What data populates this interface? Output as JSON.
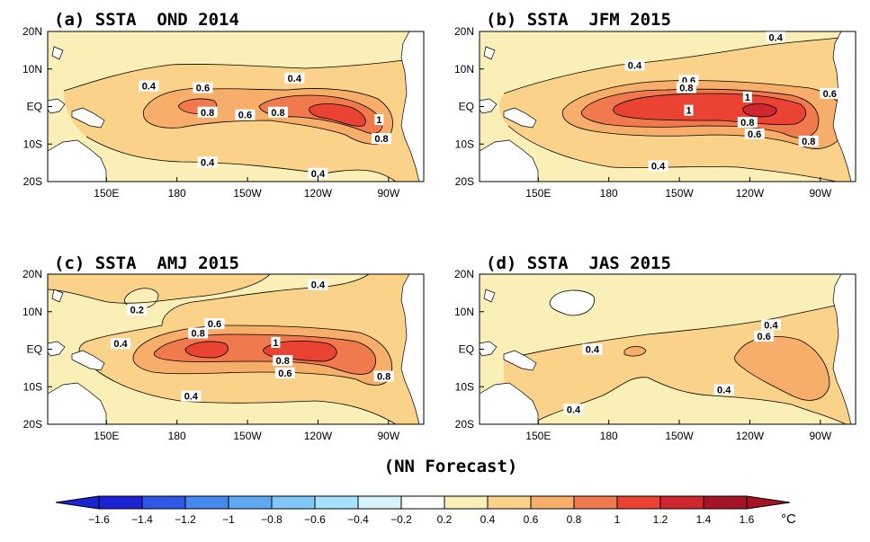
{
  "panels": [
    {
      "title": "(a) SSTA  OND 2014",
      "labels": [
        {
          "v": "0.4",
          "lon": 168,
          "lat": 5.5
        },
        {
          "v": "0.6",
          "lon": 191,
          "lat": 5
        },
        {
          "v": "0.8",
          "lon": 193,
          "lat": -1.5
        },
        {
          "v": "0.6",
          "lon": 209,
          "lat": -2.2
        },
        {
          "v": "0.8",
          "lon": 223,
          "lat": -1.5
        },
        {
          "v": "0.4",
          "lon": 230,
          "lat": 7.6
        },
        {
          "v": "1",
          "lon": 266,
          "lat": -3.5
        },
        {
          "v": "0.8",
          "lon": 267,
          "lat": -8.5
        },
        {
          "v": "0.4",
          "lon": 193,
          "lat": -14.8
        },
        {
          "v": "0.4",
          "lon": 240,
          "lat": -17.8
        }
      ]
    },
    {
      "title": "(b) SSTA  JFM 2015",
      "labels": [
        {
          "v": "0.4",
          "lon": 251,
          "lat": 18.5
        },
        {
          "v": "0.4",
          "lon": 191,
          "lat": 11
        },
        {
          "v": "0.6",
          "lon": 214,
          "lat": 7
        },
        {
          "v": "0.8",
          "lon": 213,
          "lat": 5
        },
        {
          "v": "1",
          "lon": 239,
          "lat": 2.5
        },
        {
          "v": "1",
          "lon": 214,
          "lat": -1
        },
        {
          "v": "0.8",
          "lon": 239,
          "lat": -4.2
        },
        {
          "v": "0.6",
          "lon": 242,
          "lat": -7.3
        },
        {
          "v": "0.8",
          "lon": 265,
          "lat": -9.2
        },
        {
          "v": "0.6",
          "lon": 274,
          "lat": 3.5
        },
        {
          "v": "0.4",
          "lon": 201,
          "lat": -15.8
        }
      ]
    },
    {
      "title": "(c) SSTA  AMJ 2015",
      "labels": [
        {
          "v": "0.4",
          "lon": 240,
          "lat": 17.2
        },
        {
          "v": "0.2",
          "lon": 163,
          "lat": 10.5
        },
        {
          "v": "0.6",
          "lon": 196,
          "lat": 6.8
        },
        {
          "v": "0.8",
          "lon": 189,
          "lat": 4.3
        },
        {
          "v": "0.4",
          "lon": 156,
          "lat": 1.5
        },
        {
          "v": "1",
          "lon": 222,
          "lat": 1.8
        },
        {
          "v": "0.8",
          "lon": 225,
          "lat": -3
        },
        {
          "v": "0.6",
          "lon": 226,
          "lat": -6.3
        },
        {
          "v": "0.8",
          "lon": 268,
          "lat": -7.2
        },
        {
          "v": "0.4",
          "lon": 186,
          "lat": -12.5
        }
      ]
    },
    {
      "title": "(d) SSTA  JAS 2015",
      "labels": [
        {
          "v": "0.4",
          "lon": 249,
          "lat": 6.5
        },
        {
          "v": "0.6",
          "lon": 246,
          "lat": 3.5
        },
        {
          "v": "0.4",
          "lon": 173,
          "lat": 0
        },
        {
          "v": "0.4",
          "lon": 229,
          "lat": -10.8
        },
        {
          "v": "0.4",
          "lon": 165,
          "lat": -16
        }
      ]
    }
  ],
  "axes": {
    "x_ticks": [
      {
        "lon": 150,
        "label": "150E"
      },
      {
        "lon": 180,
        "label": "180"
      },
      {
        "lon": 210,
        "label": "150W"
      },
      {
        "lon": 240,
        "label": "120W"
      },
      {
        "lon": 270,
        "label": "90W"
      }
    ],
    "y_ticks": [
      {
        "lat": 20,
        "label": "20N"
      },
      {
        "lat": 10,
        "label": "10N"
      },
      {
        "lat": 0,
        "label": "EQ"
      },
      {
        "lat": -10,
        "label": "10S"
      },
      {
        "lat": -20,
        "label": "20S"
      }
    ],
    "lon_range": [
      125,
      285
    ],
    "lat_range": [
      -20,
      20
    ]
  },
  "footer": "(NN Forecast)",
  "colorbar": {
    "labels": [
      "-1.6",
      "-1.4",
      "-1.2",
      "-1",
      "-0.8",
      "-0.6",
      "-0.4",
      "-0.2",
      "0.2",
      "0.4",
      "0.6",
      "0.8",
      "1",
      "1.2",
      "1.4",
      "1.6"
    ],
    "colors": [
      "#1b23d3",
      "#2f57e6",
      "#4589ef",
      "#5fa9f4",
      "#7fc8f8",
      "#a6e2fb",
      "#d5f3fb",
      "#ffffff",
      "#fbefb8",
      "#fbd28a",
      "#f6ae6a",
      "#f07a4d",
      "#ea4233",
      "#cf2630",
      "#a51326"
    ],
    "unit": "°C"
  },
  "chart_data": {
    "type": "heatmap",
    "variable": "SSTA",
    "unit": "°C",
    "lon_range": [
      125,
      285
    ],
    "lat_range": [
      -20,
      20
    ],
    "panels": [
      {
        "title": "(a) SSTA  OND 2014",
        "anomaly_centers": [
          {
            "lon": 194,
            "lat": 0,
            "max": 0.8
          },
          {
            "lon": 252,
            "lat": 0,
            "max": 1.0
          }
        ]
      },
      {
        "title": "(b) SSTA  JFM 2015",
        "anomaly_centers": [
          {
            "lon": 225,
            "lat": 0,
            "max": 1.0
          },
          {
            "lon": 245,
            "lat": 0,
            "max": 1.2
          }
        ]
      },
      {
        "title": "(c) SSTA  AMJ 2015",
        "anomaly_centers": [
          {
            "lon": 200,
            "lat": 0,
            "max": 1.0
          },
          {
            "lon": 242,
            "lat": 0,
            "max": 1.0
          }
        ]
      },
      {
        "title": "(d) SSTA  JAS 2015",
        "anomaly_centers": [
          {
            "lon": 262,
            "lat": -3,
            "max": 0.6
          }
        ]
      }
    ]
  }
}
